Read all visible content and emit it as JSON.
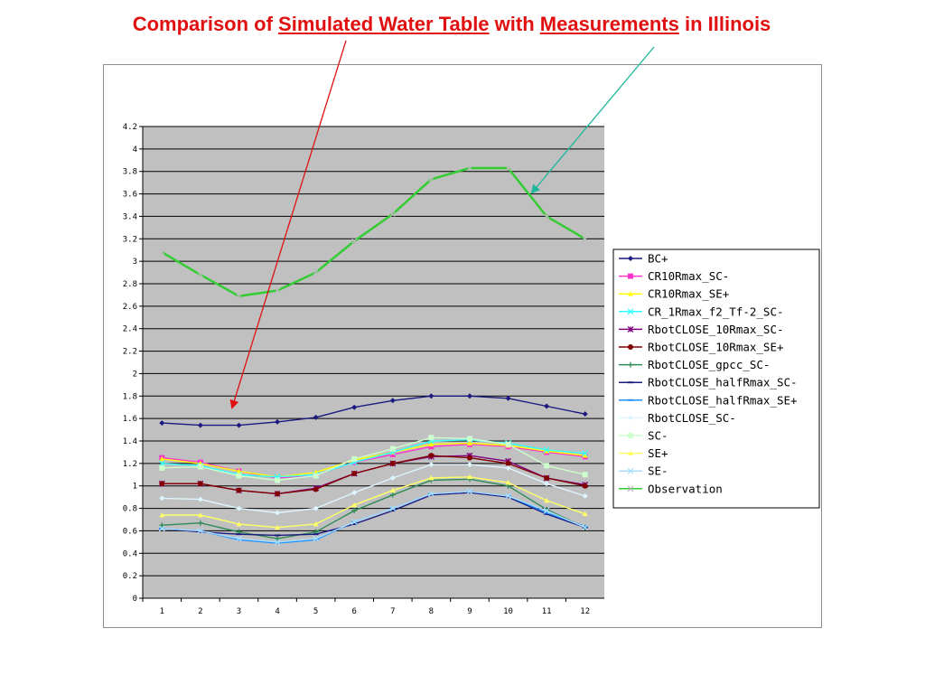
{
  "slide": {
    "title_parts": [
      "Comparison of ",
      "Simulated Water Table",
      " with ",
      "Measurements",
      " in Illinois"
    ]
  },
  "colors": {
    "title": "#e01010",
    "plot_background": "#c0c0c0",
    "gridline": "#000000",
    "red_arrow": "#e01010",
    "teal_arrow": "#1ab89a"
  },
  "chart_data": {
    "type": "line",
    "title": "",
    "xlabel": "",
    "ylabel": "",
    "categories": [
      "1",
      "2",
      "3",
      "4",
      "5",
      "6",
      "7",
      "8",
      "9",
      "10",
      "11",
      "12"
    ],
    "ylim": [
      0,
      4.2
    ],
    "y_ticks": [
      "0",
      "0.2",
      "0.4",
      "0.6",
      "0.8",
      "1",
      "1.2",
      "1.4",
      "1.6",
      "1.8",
      "2",
      "2.2",
      "2.4",
      "2.6",
      "2.8",
      "3",
      "3.2",
      "3.4",
      "3.6",
      "3.8",
      "4",
      "4.2"
    ],
    "grid": true,
    "legend_position": "right",
    "series": [
      {
        "name": "BC+",
        "color": "#1a1a80",
        "marker": "diamond",
        "values": [
          1.56,
          1.54,
          1.54,
          1.57,
          1.61,
          1.7,
          1.76,
          1.8,
          1.8,
          1.78,
          1.71,
          1.64
        ]
      },
      {
        "name": "CR10Rmax_SC-",
        "color": "#ff33cc",
        "marker": "square",
        "values": [
          1.25,
          1.21,
          1.13,
          1.07,
          1.1,
          1.21,
          1.28,
          1.35,
          1.37,
          1.35,
          1.3,
          1.26
        ]
      },
      {
        "name": "CR10Rmax_SE+",
        "color": "#ffff00",
        "marker": "triangle",
        "values": [
          1.24,
          1.2,
          1.13,
          1.08,
          1.12,
          1.23,
          1.3,
          1.37,
          1.38,
          1.36,
          1.31,
          1.27
        ]
      },
      {
        "name": "CR_1Rmax_f2_Tf-2_SC-",
        "color": "#33ffff",
        "marker": "x",
        "values": [
          1.2,
          1.18,
          1.1,
          1.08,
          1.1,
          1.21,
          1.3,
          1.4,
          1.41,
          1.38,
          1.32,
          1.29
        ]
      },
      {
        "name": "RbotCLOSE_10Rmax_SC-",
        "color": "#800080",
        "marker": "star",
        "values": [
          1.02,
          1.02,
          0.96,
          0.93,
          0.98,
          1.11,
          1.2,
          1.26,
          1.27,
          1.22,
          1.07,
          1.01
        ]
      },
      {
        "name": "RbotCLOSE_10Rmax_SE+",
        "color": "#800000",
        "marker": "circle",
        "values": [
          1.02,
          1.02,
          0.96,
          0.93,
          0.97,
          1.11,
          1.2,
          1.27,
          1.25,
          1.2,
          1.07,
          1.0
        ]
      },
      {
        "name": "RbotCLOSE_gpcc_SC-",
        "color": "#2e8b57",
        "marker": "plus",
        "values": [
          0.65,
          0.67,
          0.59,
          0.53,
          0.59,
          0.78,
          0.92,
          1.05,
          1.06,
          1.0,
          0.79,
          0.63
        ]
      },
      {
        "name": "RbotCLOSE_halfRmax_SC-",
        "color": "#1a1a80",
        "marker": "dash",
        "values": [
          0.62,
          0.59,
          0.57,
          0.56,
          0.57,
          0.66,
          0.78,
          0.92,
          0.94,
          0.9,
          0.75,
          0.63
        ]
      },
      {
        "name": "RbotCLOSE_halfRmax_SE+",
        "color": "#1e90ff",
        "marker": "dash",
        "values": [
          0.62,
          0.6,
          0.52,
          0.49,
          0.52,
          0.68,
          0.8,
          0.93,
          0.95,
          0.91,
          0.76,
          0.64
        ]
      },
      {
        "name": "RbotCLOSE_SC-",
        "color": "#ddf5ff",
        "marker": "diamond",
        "values": [
          0.89,
          0.88,
          0.8,
          0.76,
          0.8,
          0.94,
          1.07,
          1.19,
          1.19,
          1.16,
          1.02,
          0.91
        ]
      },
      {
        "name": "SC-",
        "color": "#ccffcc",
        "marker": "square",
        "values": [
          1.16,
          1.17,
          1.09,
          1.05,
          1.09,
          1.24,
          1.33,
          1.43,
          1.42,
          1.37,
          1.18,
          1.1
        ]
      },
      {
        "name": "SE+",
        "color": "#ffff66",
        "marker": "triangle",
        "values": [
          0.74,
          0.74,
          0.66,
          0.63,
          0.66,
          0.83,
          0.96,
          1.07,
          1.08,
          1.03,
          0.87,
          0.75
        ]
      },
      {
        "name": "SE-",
        "color": "#aaddff",
        "marker": "x",
        "values": [
          0.62,
          0.6,
          0.53,
          0.5,
          0.53,
          0.68,
          0.8,
          0.93,
          0.95,
          0.91,
          0.78,
          0.63
        ]
      },
      {
        "name": "Observation",
        "color": "#33cc33",
        "marker": "x",
        "values": [
          3.08,
          2.88,
          2.69,
          2.74,
          2.9,
          3.18,
          3.42,
          3.73,
          3.83,
          3.83,
          3.4,
          3.2
        ]
      }
    ]
  }
}
